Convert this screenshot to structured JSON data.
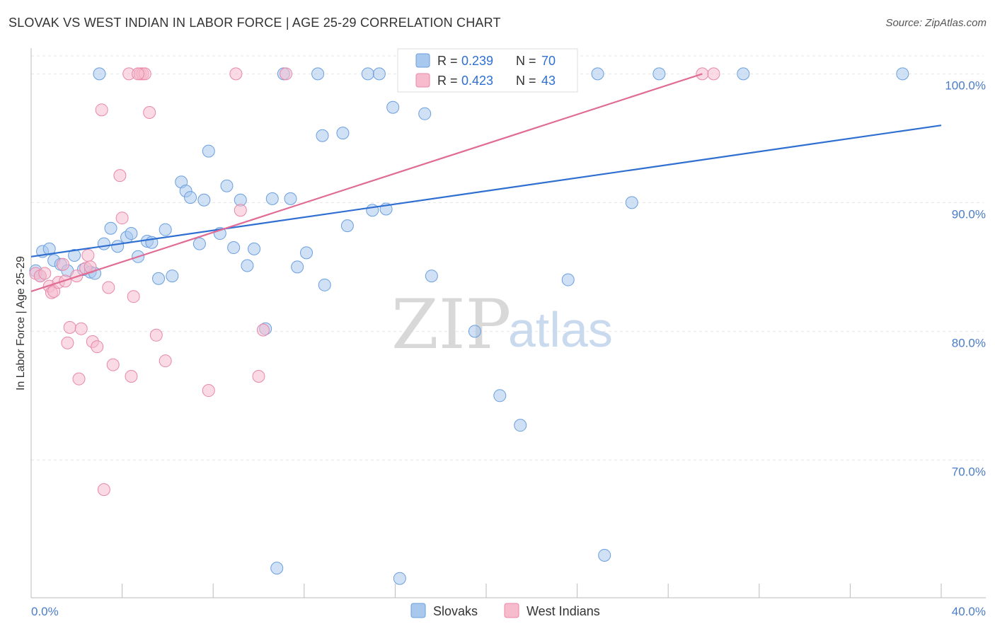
{
  "title": "SLOVAK VS WEST INDIAN IN LABOR FORCE | AGE 25-29 CORRELATION CHART",
  "source": "Source: ZipAtlas.com",
  "watermark": {
    "zip": "ZIP",
    "atlas": "atlas"
  },
  "colors": {
    "slovak_fill": "#a9c8ee",
    "slovak_stroke": "#6a9fde",
    "slovak_line": "#2f6fd1",
    "westindian_fill": "#f6bccd",
    "westindian_stroke": "#e888a8",
    "westindian_line": "#e06c96",
    "grid": "#e6e6e6",
    "axis": "#bbbbbb"
  },
  "legend_top": {
    "rows": [
      {
        "r_label": "R =",
        "r_value": "0.239",
        "n_label": "N =",
        "n_value": "70"
      },
      {
        "r_label": "R =",
        "r_value": "0.423",
        "n_label": "N =",
        "n_value": "43"
      }
    ]
  },
  "legend_bottom": [
    "Slovaks",
    "West Indians"
  ],
  "chart_data": {
    "type": "scatter",
    "title": "SLOVAK VS WEST INDIAN IN LABOR FORCE | AGE 25-29 CORRELATION CHART",
    "xlabel": "",
    "ylabel": "In Labor Force | Age 25-29",
    "xlim": [
      0,
      40
    ],
    "ylim": [
      59.3,
      102
    ],
    "x_tick_labels": [
      "0.0%",
      "40.0%"
    ],
    "y_ticks": [
      70,
      80,
      90,
      100
    ],
    "y_tick_labels": [
      "70.0%",
      "80.0%",
      "90.0%",
      "100.0%"
    ],
    "grid": true,
    "legend_placement": "bottom-center",
    "series": [
      {
        "name": "Slovaks",
        "R": 0.239,
        "N": 70,
        "trend": {
          "x": [
            0,
            40
          ],
          "y": [
            85.8,
            96.0
          ]
        },
        "points": [
          [
            0.2,
            84.7
          ],
          [
            0.4,
            84.3
          ],
          [
            0.5,
            86.2
          ],
          [
            0.8,
            86.4
          ],
          [
            1.0,
            85.5
          ],
          [
            1.3,
            85.2
          ],
          [
            1.6,
            84.7
          ],
          [
            1.9,
            85.9
          ],
          [
            2.3,
            84.8
          ],
          [
            2.6,
            84.6
          ],
          [
            2.8,
            84.5
          ],
          [
            3.2,
            86.8
          ],
          [
            3.5,
            88.0
          ],
          [
            3.8,
            86.6
          ],
          [
            4.2,
            87.3
          ],
          [
            4.4,
            87.6
          ],
          [
            4.7,
            85.8
          ],
          [
            5.1,
            87.0
          ],
          [
            5.3,
            86.9
          ],
          [
            5.6,
            84.1
          ],
          [
            5.9,
            87.9
          ],
          [
            6.2,
            84.3
          ],
          [
            6.6,
            91.6
          ],
          [
            6.8,
            90.9
          ],
          [
            7.0,
            90.4
          ],
          [
            7.4,
            86.8
          ],
          [
            7.6,
            90.2
          ],
          [
            7.8,
            94.0
          ],
          [
            8.3,
            87.6
          ],
          [
            8.6,
            91.3
          ],
          [
            8.9,
            86.5
          ],
          [
            9.2,
            90.2
          ],
          [
            9.5,
            85.1
          ],
          [
            9.8,
            86.4
          ],
          [
            10.3,
            80.2
          ],
          [
            10.6,
            90.3
          ],
          [
            11.1,
            100.0
          ],
          [
            11.4,
            90.3
          ],
          [
            11.7,
            85.0
          ],
          [
            12.1,
            86.1
          ],
          [
            12.6,
            100.0
          ],
          [
            12.8,
            95.2
          ],
          [
            12.9,
            83.6
          ],
          [
            13.7,
            95.4
          ],
          [
            13.9,
            88.2
          ],
          [
            14.8,
            100.0
          ],
          [
            15.0,
            89.4
          ],
          [
            15.3,
            100.0
          ],
          [
            15.6,
            89.5
          ],
          [
            15.9,
            97.4
          ],
          [
            17.0,
            100.0
          ],
          [
            17.3,
            96.9
          ],
          [
            17.6,
            84.3
          ],
          [
            19.5,
            80.0
          ],
          [
            20.6,
            75.0
          ],
          [
            21.0,
            100.0
          ],
          [
            21.5,
            72.7
          ],
          [
            23.1,
            100.0
          ],
          [
            23.6,
            84.0
          ],
          [
            24.9,
            100.0
          ],
          [
            26.4,
            90.0
          ],
          [
            27.6,
            100.0
          ],
          [
            31.3,
            100.0
          ],
          [
            38.3,
            100.0
          ],
          [
            10.8,
            61.6
          ],
          [
            16.2,
            60.8
          ],
          [
            25.2,
            62.6
          ],
          [
            3.0,
            100.0
          ],
          [
            22.8,
            100.0
          ],
          [
            17.8,
            100.0
          ]
        ]
      },
      {
        "name": "West Indians",
        "R": 0.423,
        "N": 43,
        "trend": {
          "x": [
            0,
            29.5
          ],
          "y": [
            83.1,
            100.0
          ]
        },
        "points": [
          [
            0.2,
            84.5
          ],
          [
            0.4,
            84.3
          ],
          [
            0.6,
            84.5
          ],
          [
            0.8,
            83.5
          ],
          [
            0.9,
            83.0
          ],
          [
            1.0,
            83.1
          ],
          [
            1.2,
            83.8
          ],
          [
            1.4,
            85.2
          ],
          [
            1.5,
            83.9
          ],
          [
            1.6,
            79.1
          ],
          [
            1.7,
            80.3
          ],
          [
            2.0,
            84.3
          ],
          [
            2.1,
            76.3
          ],
          [
            2.2,
            80.2
          ],
          [
            2.4,
            84.9
          ],
          [
            2.5,
            85.9
          ],
          [
            2.6,
            85.0
          ],
          [
            2.7,
            79.2
          ],
          [
            2.9,
            78.8
          ],
          [
            3.1,
            97.2
          ],
          [
            3.2,
            67.7
          ],
          [
            3.4,
            83.4
          ],
          [
            3.6,
            77.4
          ],
          [
            3.9,
            92.1
          ],
          [
            4.0,
            88.8
          ],
          [
            4.3,
            100.0
          ],
          [
            4.4,
            76.5
          ],
          [
            4.5,
            82.7
          ],
          [
            4.8,
            100.0
          ],
          [
            4.9,
            100.0
          ],
          [
            5.0,
            100.0
          ],
          [
            5.2,
            97.0
          ],
          [
            5.5,
            79.7
          ],
          [
            5.9,
            77.7
          ],
          [
            7.8,
            75.4
          ],
          [
            9.0,
            100.0
          ],
          [
            9.2,
            89.4
          ],
          [
            10.0,
            76.5
          ],
          [
            10.2,
            80.1
          ],
          [
            11.2,
            100.0
          ],
          [
            29.5,
            100.0
          ],
          [
            30.0,
            100.0
          ],
          [
            4.7,
            100.0
          ]
        ]
      }
    ]
  }
}
